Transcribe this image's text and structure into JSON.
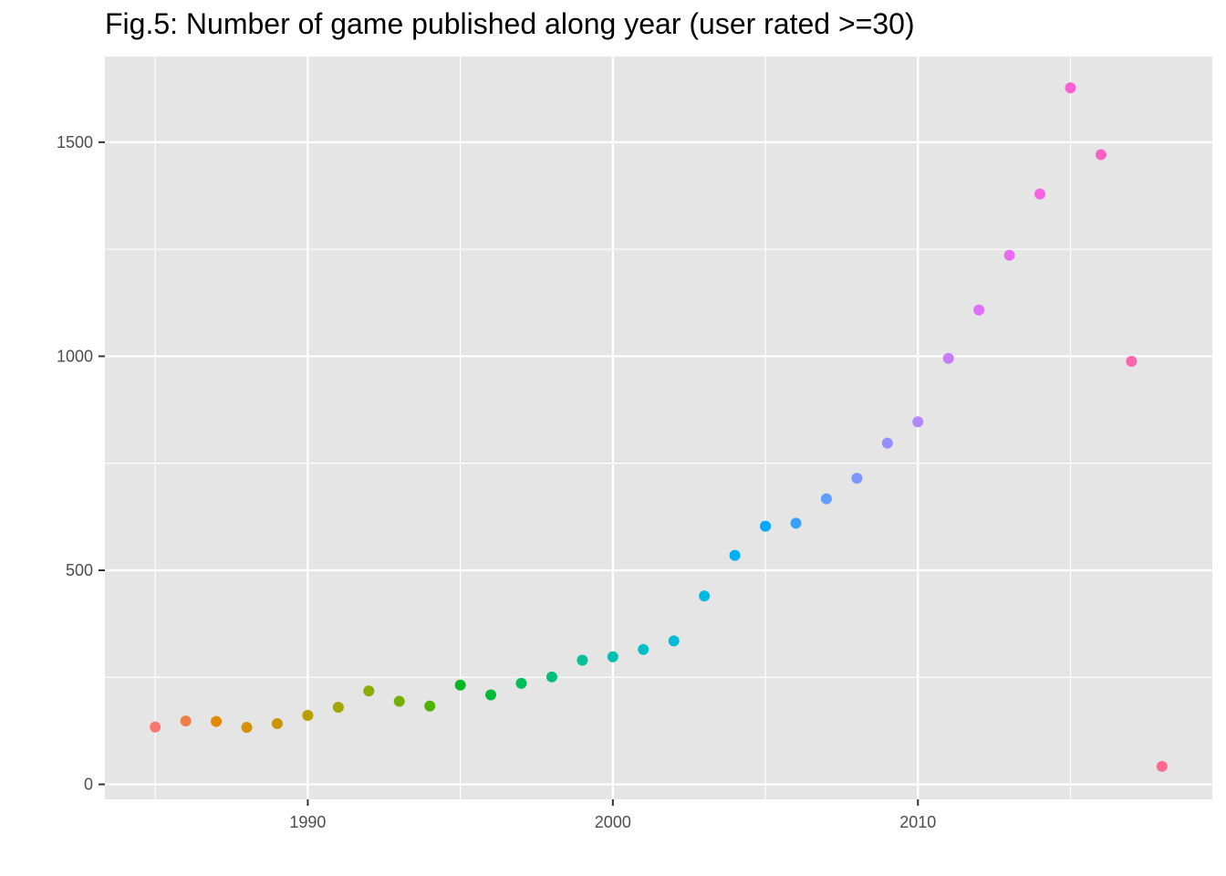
{
  "chart_data": {
    "type": "scatter",
    "title": "Fig.5: Number of game published along year (user rated >=30)",
    "xlabel": "",
    "ylabel": "",
    "xlim": [
      1983.35,
      2019.65
    ],
    "ylim": [
      -35,
      1700
    ],
    "x_ticks": [
      1990,
      2000,
      2010
    ],
    "y_ticks": [
      0,
      500,
      1000,
      1500
    ],
    "x_minor_ticks": [
      1985,
      1995,
      2005,
      2015
    ],
    "y_minor_ticks": [
      250,
      750,
      1250
    ],
    "grid": true,
    "legend": "none",
    "panel_background": "#e5e5e5",
    "grid_color": "#ffffff",
    "series": [
      {
        "x": [
          1985,
          1986,
          1987,
          1988,
          1989,
          1990,
          1991,
          1992,
          1993,
          1994,
          1995,
          1996,
          1997,
          1998,
          1999,
          2000,
          2001,
          2002,
          2003,
          2004,
          2005,
          2006,
          2007,
          2008,
          2009,
          2010,
          2011,
          2012,
          2013,
          2014,
          2015,
          2016,
          2017,
          2018
        ],
        "y": [
          134,
          148,
          147,
          133,
          142,
          161,
          180,
          218,
          194,
          183,
          232,
          209,
          236,
          251,
          290,
          298,
          315,
          335,
          440,
          535,
          603,
          610,
          667,
          715,
          797,
          847,
          995,
          1108,
          1236,
          1379,
          1627,
          1471,
          988,
          42
        ],
        "colors": [
          "#F8766D",
          "#EF7F49",
          "#E38900",
          "#D89000",
          "#C99800",
          "#B79F00",
          "#A3A500",
          "#8EAB00",
          "#72B000",
          "#4FB400",
          "#00B81F",
          "#00BA38",
          "#00BC59",
          "#00BF7D",
          "#00C19A",
          "#00C0B0",
          "#00BFC4",
          "#00BCD8",
          "#00B9E3",
          "#00B0F6",
          "#00A9FF",
          "#35A2FF",
          "#619CFF",
          "#7F96FF",
          "#9590FF",
          "#B186FF",
          "#C77CFF",
          "#DE71F9",
          "#E76BF3",
          "#F564E3",
          "#FC61D5",
          "#FF61C3",
          "#FF64B0",
          "#FF6C91"
        ]
      }
    ]
  }
}
